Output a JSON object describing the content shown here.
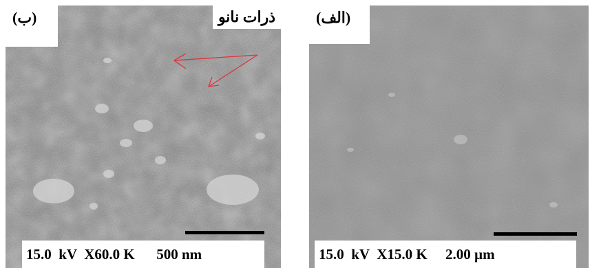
{
  "panels": {
    "b": {
      "label": "(ب)",
      "annotation": "ذرات نانو",
      "voltage": "15.0  kV",
      "magnification": "X60.0 K",
      "scale": "500 nm"
    },
    "a": {
      "label": "(الف)",
      "voltage": "15.0  kV",
      "magnification": "X15.0 K",
      "scale": "2.00 µm"
    }
  },
  "colors": {
    "arrow": "#e0323a",
    "sem_base": "#8a8a8a"
  }
}
